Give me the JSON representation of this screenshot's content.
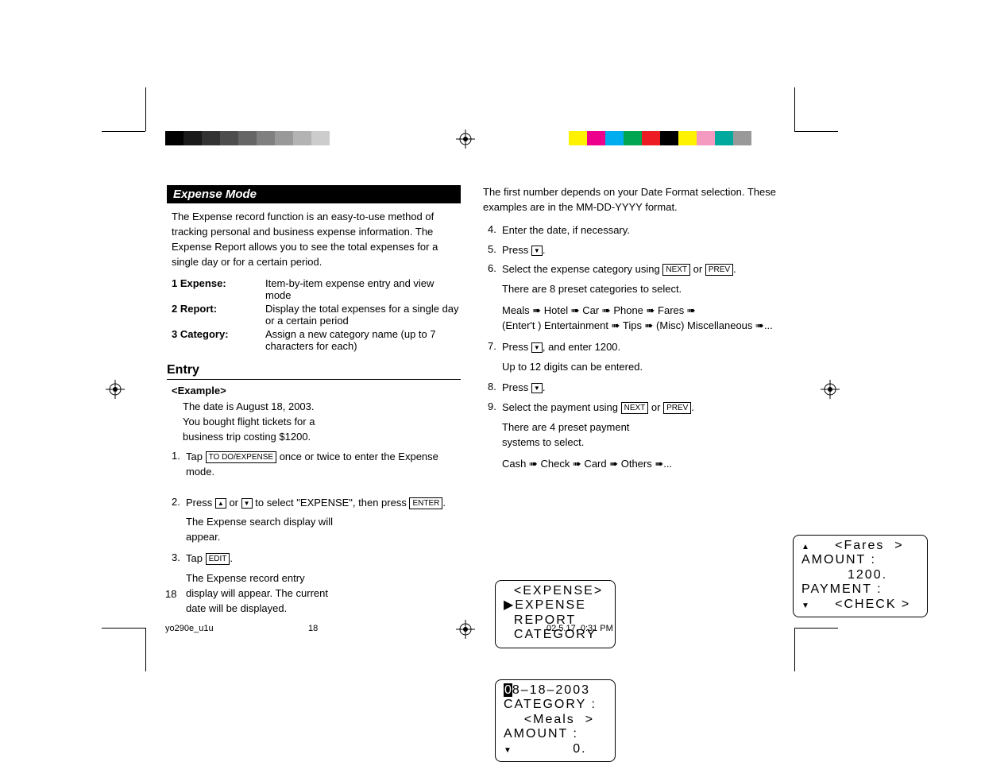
{
  "colorbars": {
    "left": [
      "#000000",
      "#1a1a1a",
      "#333333",
      "#4d4d4d",
      "#666666",
      "#808080",
      "#999999",
      "#b3b3b3",
      "#cccccc",
      "#ffffff"
    ],
    "right": [
      "#fff200",
      "#ec008c",
      "#00aeef",
      "#00a651",
      "#ed1c24",
      "#000000",
      "#fff200",
      "#f49ac1",
      "#00a99d",
      "#999999"
    ]
  },
  "header": {
    "title": "Expense Mode"
  },
  "intro": "The Expense record function is an easy-to-use method of tracking personal and business expense information. The Expense Report allows you to see the total expenses for a single day or for a certain period.",
  "definitions": [
    {
      "term": "1 Expense:",
      "desc": "Item-by-item expense entry and view mode"
    },
    {
      "term": "2 Report:",
      "desc": "Display the total expenses for a single day or a certain period"
    },
    {
      "term": "3 Category:",
      "desc": "Assign a new category name (up to 7 characters for each)"
    }
  ],
  "entry": {
    "heading": "Entry",
    "example_label": "<Example>",
    "example_intro": "The date is August 18, 2003.\nYou bought flight tickets for a\nbusiness trip costing  $1200.",
    "steps_left": [
      {
        "n": "1.",
        "pre": "Tap ",
        "key": "TO DO/EXPENSE",
        "post": " once or twice to enter the Expense mode."
      },
      {
        "n": "2.",
        "plain_with_keys": true
      },
      {
        "n": "3.",
        "pre": "Tap ",
        "key": "EDIT",
        "post": "."
      }
    ],
    "sub_after_2": "The Expense search display will appear.",
    "sub_after_3": "The Expense record entry display will appear. The current date will be displayed."
  },
  "right": {
    "top_para": "The first number depends on your Date Format selection. These examples are in the MM-DD-YYYY format.",
    "steps": [
      {
        "n": "4.",
        "text": "Enter the date, if necessary."
      },
      {
        "n": "5.",
        "press_down": true
      },
      {
        "n": "6.",
        "select_category": true
      },
      {
        "n": "7.",
        "press_down_enter_1200": true
      },
      {
        "n": "8.",
        "press_down": true
      },
      {
        "n": "9.",
        "select_payment": true
      }
    ],
    "sub_6a": "There are 8 preset categories to select.",
    "sub_6b": "Meals ➠ Hotel ➠ Car ➠ Phone ➠ Fares ➠\n(Enter't ) Entertainment ➠ Tips ➠ (Misc) Miscellaneous ➠...",
    "sub_7": "Up to 12 digits can be entered.",
    "sub_9a": "There are 4 preset payment systems to select.",
    "sub_9b": "Cash ➠ Check ➠ Card ➠ Others ➠...",
    "next_key": "NEXT",
    "prev_key": "PREV",
    "enter_key": "ENTER"
  },
  "lcd1": {
    "l1": "  <EXPENSE>",
    "l2": "▶EXPENSE",
    "l3": "  REPORT",
    "l4": "  CATEGORY"
  },
  "lcd2": {
    "l1_cursor": "0",
    "l1_rest": "8–18–2003",
    "l2": "CATEGORY :",
    "l3": "    <Meals  >",
    "l4a": "AMOUNT :",
    "l4b": "            0."
  },
  "lcd3": {
    "l1": "     <Fares  >",
    "l2": "AMOUNT :",
    "l3": "         1200.",
    "l4": "PAYMENT :",
    "l5": "     <CHECK >"
  },
  "page_number": "18",
  "footer": {
    "file": "yo290e_u1u",
    "page": "18",
    "timestamp": "02.5.17, 0:31 PM"
  }
}
